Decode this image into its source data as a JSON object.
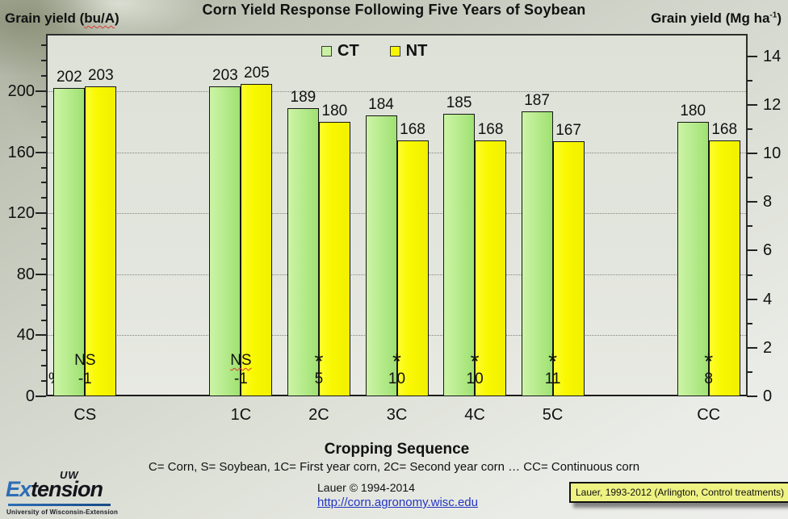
{
  "title": "Corn Yield Response Following Five Years of Soybean",
  "legend": {
    "ct": "CT",
    "nt": "NT"
  },
  "left_axis": {
    "label_prefix": "Grain yield (",
    "label_wavy": "bu/A",
    "label_suffix": ")"
  },
  "right_axis": {
    "label_main": "Grain yield (Mg ha",
    "label_sup": "-1",
    "label_suffix": ")"
  },
  "x_axis": {
    "label": "Cropping Sequence"
  },
  "footnote": "C= Corn, S= Soybean, 1C= First year corn, 2C= Second year corn … CC= Continuous corn",
  "credit": {
    "line1": "Lauer © 1994-2014",
    "url": "http://corn.agronomy.wisc.edu"
  },
  "source_box": "Lauer, 1993-2012 (Arlington, Control treatments)",
  "logo": {
    "uw": "UW",
    "ex": "Ex",
    "tension": "tension",
    "caption": "University of Wisconsin-Extension"
  },
  "chart_data": {
    "type": "bar",
    "title": "Corn Yield Response Following Five Years of Soybean",
    "xlabel": "Cropping Sequence",
    "ylabel_left": "Grain yield (bu/A)",
    "ylabel_right": "Grain yield (Mg ha-1)",
    "categories": [
      "CS",
      "1C",
      "2C",
      "3C",
      "4C",
      "5C",
      "CC"
    ],
    "series": [
      {
        "name": "CT",
        "values": [
          202,
          203,
          189,
          184,
          185,
          187,
          180
        ]
      },
      {
        "name": "NT",
        "values": [
          203,
          205,
          180,
          168,
          168,
          167,
          168
        ]
      }
    ],
    "significance": [
      "NS",
      "NS",
      "*",
      "*",
      "*",
      "*",
      "*"
    ],
    "sig_wavy_index": 1,
    "pct_prefix": "%=",
    "pct_change": [
      "-1",
      "-1",
      "5",
      "10",
      "10",
      "11",
      "8"
    ],
    "slots": [
      0,
      2,
      3,
      4,
      5,
      6,
      8
    ],
    "slot_count": 9,
    "left_ticks": [
      0,
      40,
      80,
      120,
      160,
      200
    ],
    "left_minor_step": 10,
    "left_minor_max": 230,
    "left_axis_top_value": 238,
    "right_ticks": [
      0,
      2,
      4,
      6,
      8,
      10,
      12,
      14
    ],
    "right_minor_step": 1,
    "bu_per_mg": 15.93,
    "gridlines": [
      40,
      80,
      120,
      160,
      200
    ],
    "grid_style": "dotted horizontal",
    "legend_position": "top-center",
    "colors": {
      "ct": "#b4ea8a",
      "ct_light": "#ccf4a6",
      "ct_dark": "#9fe171",
      "nt": "#f9f800",
      "bar_border": "#161616",
      "link": "#2335c2",
      "source_box_bg": "#eef283"
    }
  }
}
